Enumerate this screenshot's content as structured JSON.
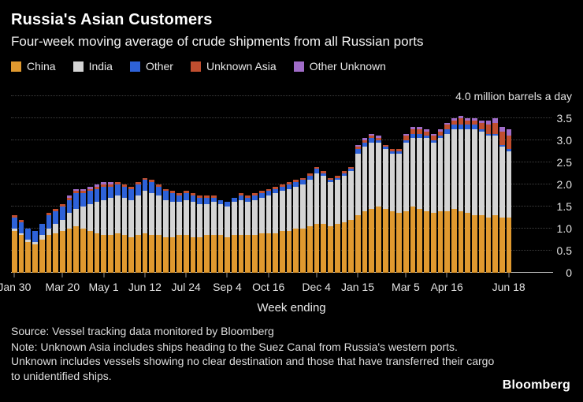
{
  "header": {
    "title": "Russia's Asian Customers",
    "subtitle": "Four-week moving average of crude shipments from all Russian ports"
  },
  "chart_data": {
    "type": "bar",
    "stacked": true,
    "xlabel": "Week ending",
    "ylim": [
      0,
      4.0
    ],
    "grid": "horizontal-dotted",
    "legend_position": "top-left",
    "y_ticks": [
      {
        "value": 4.0,
        "label": "4.0",
        "suffix": " million barrels a day"
      },
      {
        "value": 3.5,
        "label": "3.5"
      },
      {
        "value": 3.0,
        "label": "3.0"
      },
      {
        "value": 2.5,
        "label": "2.5"
      },
      {
        "value": 2.0,
        "label": "2.0"
      },
      {
        "value": 1.5,
        "label": "1.5"
      },
      {
        "value": 1.0,
        "label": "1.0"
      },
      {
        "value": 0.5,
        "label": "0.5"
      },
      {
        "value": 0,
        "label": "0"
      }
    ],
    "n_points": 73,
    "x_ticks": [
      {
        "index": 0,
        "label": "Jan 30"
      },
      {
        "index": 7,
        "label": "Mar 20"
      },
      {
        "index": 13,
        "label": "May 1"
      },
      {
        "index": 19,
        "label": "Jun 12"
      },
      {
        "index": 25,
        "label": "Jul 24"
      },
      {
        "index": 31,
        "label": "Sep 4"
      },
      {
        "index": 37,
        "label": "Oct 16"
      },
      {
        "index": 44,
        "label": "Dec 4"
      },
      {
        "index": 50,
        "label": "Jan 15"
      },
      {
        "index": 57,
        "label": "Mar 5"
      },
      {
        "index": 63,
        "label": "Apr 16"
      },
      {
        "index": 72,
        "label": "Jun 18"
      }
    ],
    "series": [
      {
        "name": "China",
        "color": "#E0992F",
        "values": [
          0.95,
          0.85,
          0.7,
          0.65,
          0.75,
          0.85,
          0.9,
          0.95,
          1.0,
          1.05,
          1.0,
          0.95,
          0.9,
          0.85,
          0.85,
          0.9,
          0.85,
          0.8,
          0.85,
          0.9,
          0.85,
          0.85,
          0.8,
          0.8,
          0.85,
          0.85,
          0.8,
          0.8,
          0.85,
          0.85,
          0.85,
          0.8,
          0.85,
          0.85,
          0.85,
          0.85,
          0.9,
          0.9,
          0.9,
          0.95,
          0.95,
          1.0,
          1.0,
          1.05,
          1.1,
          1.1,
          1.05,
          1.1,
          1.15,
          1.2,
          1.3,
          1.4,
          1.45,
          1.5,
          1.45,
          1.4,
          1.35,
          1.4,
          1.5,
          1.45,
          1.4,
          1.35,
          1.4,
          1.4,
          1.45,
          1.4,
          1.35,
          1.3,
          1.3,
          1.25,
          1.3,
          1.25,
          1.25
        ]
      },
      {
        "name": "India",
        "color": "#D4D4D4",
        "values": [
          0.05,
          0.05,
          0.05,
          0.05,
          0.1,
          0.15,
          0.2,
          0.25,
          0.35,
          0.4,
          0.5,
          0.6,
          0.7,
          0.8,
          0.85,
          0.85,
          0.85,
          0.85,
          0.9,
          0.95,
          0.95,
          0.9,
          0.85,
          0.8,
          0.75,
          0.8,
          0.8,
          0.75,
          0.7,
          0.75,
          0.7,
          0.7,
          0.75,
          0.8,
          0.75,
          0.8,
          0.8,
          0.85,
          0.9,
          0.9,
          0.95,
          0.95,
          1.0,
          1.05,
          1.15,
          1.1,
          1.0,
          1.0,
          1.05,
          1.1,
          1.4,
          1.45,
          1.5,
          1.45,
          1.35,
          1.3,
          1.35,
          1.55,
          1.55,
          1.6,
          1.65,
          1.6,
          1.65,
          1.75,
          1.8,
          1.85,
          1.9,
          1.95,
          1.9,
          1.85,
          1.8,
          1.6,
          1.5
        ]
      },
      {
        "name": "Other",
        "color": "#2E62D9",
        "values": [
          0.25,
          0.25,
          0.25,
          0.25,
          0.25,
          0.3,
          0.3,
          0.3,
          0.3,
          0.35,
          0.3,
          0.3,
          0.3,
          0.3,
          0.25,
          0.25,
          0.25,
          0.25,
          0.25,
          0.25,
          0.25,
          0.2,
          0.2,
          0.2,
          0.15,
          0.15,
          0.15,
          0.15,
          0.15,
          0.1,
          0.1,
          0.1,
          0.1,
          0.1,
          0.1,
          0.1,
          0.1,
          0.1,
          0.1,
          0.1,
          0.1,
          0.1,
          0.1,
          0.1,
          0.1,
          0.05,
          0.05,
          0.05,
          0.05,
          0.05,
          0.1,
          0.1,
          0.1,
          0.05,
          0.05,
          0.05,
          0.05,
          0.05,
          0.1,
          0.1,
          0.05,
          0.05,
          0.05,
          0.1,
          0.1,
          0.1,
          0.1,
          0.1,
          0.05,
          0.05,
          0.05,
          0.05,
          0.05
        ]
      },
      {
        "name": "Unknown Asia",
        "color": "#C04E2F",
        "values": [
          0.05,
          0.05,
          0.0,
          0.0,
          0.0,
          0.05,
          0.05,
          0.05,
          0.05,
          0.05,
          0.05,
          0.05,
          0.05,
          0.05,
          0.05,
          0.05,
          0.05,
          0.05,
          0.05,
          0.05,
          0.05,
          0.05,
          0.05,
          0.05,
          0.05,
          0.05,
          0.05,
          0.05,
          0.05,
          0.05,
          0.0,
          0.0,
          0.0,
          0.05,
          0.05,
          0.05,
          0.05,
          0.05,
          0.05,
          0.05,
          0.05,
          0.05,
          0.05,
          0.05,
          0.05,
          0.05,
          0.05,
          0.05,
          0.05,
          0.05,
          0.05,
          0.05,
          0.05,
          0.05,
          0.05,
          0.05,
          0.05,
          0.1,
          0.1,
          0.1,
          0.1,
          0.1,
          0.1,
          0.1,
          0.1,
          0.15,
          0.1,
          0.1,
          0.15,
          0.2,
          0.25,
          0.3,
          0.3
        ]
      },
      {
        "name": "Other Unknown",
        "color": "#A06CC8",
        "values": [
          0.0,
          0.0,
          0.0,
          0.0,
          0.0,
          0.0,
          0.0,
          0.0,
          0.05,
          0.05,
          0.05,
          0.05,
          0.05,
          0.05,
          0.05,
          0.0,
          0.0,
          0.0,
          0.0,
          0.0,
          0.0,
          0.0,
          0.0,
          0.0,
          0.0,
          0.0,
          0.0,
          0.0,
          0.0,
          0.0,
          0.0,
          0.0,
          0.0,
          0.0,
          0.0,
          0.0,
          0.0,
          0.0,
          0.0,
          0.0,
          0.0,
          0.0,
          0.0,
          0.0,
          0.0,
          0.0,
          0.0,
          0.0,
          0.0,
          0.0,
          0.05,
          0.05,
          0.05,
          0.05,
          0.0,
          0.0,
          0.0,
          0.05,
          0.05,
          0.05,
          0.05,
          0.05,
          0.05,
          0.05,
          0.05,
          0.05,
          0.05,
          0.05,
          0.05,
          0.1,
          0.1,
          0.1,
          0.15
        ]
      }
    ]
  },
  "footer": {
    "source": "Source: Vessel tracking data monitored by Bloomberg",
    "note": "Note: Unknown Asia includes ships heading to the Suez Canal from Russia's western ports. Unknown includes vessels showing no clear destination and those that have transferred their cargo to unidentified ships.",
    "logo": "Bloomberg"
  }
}
